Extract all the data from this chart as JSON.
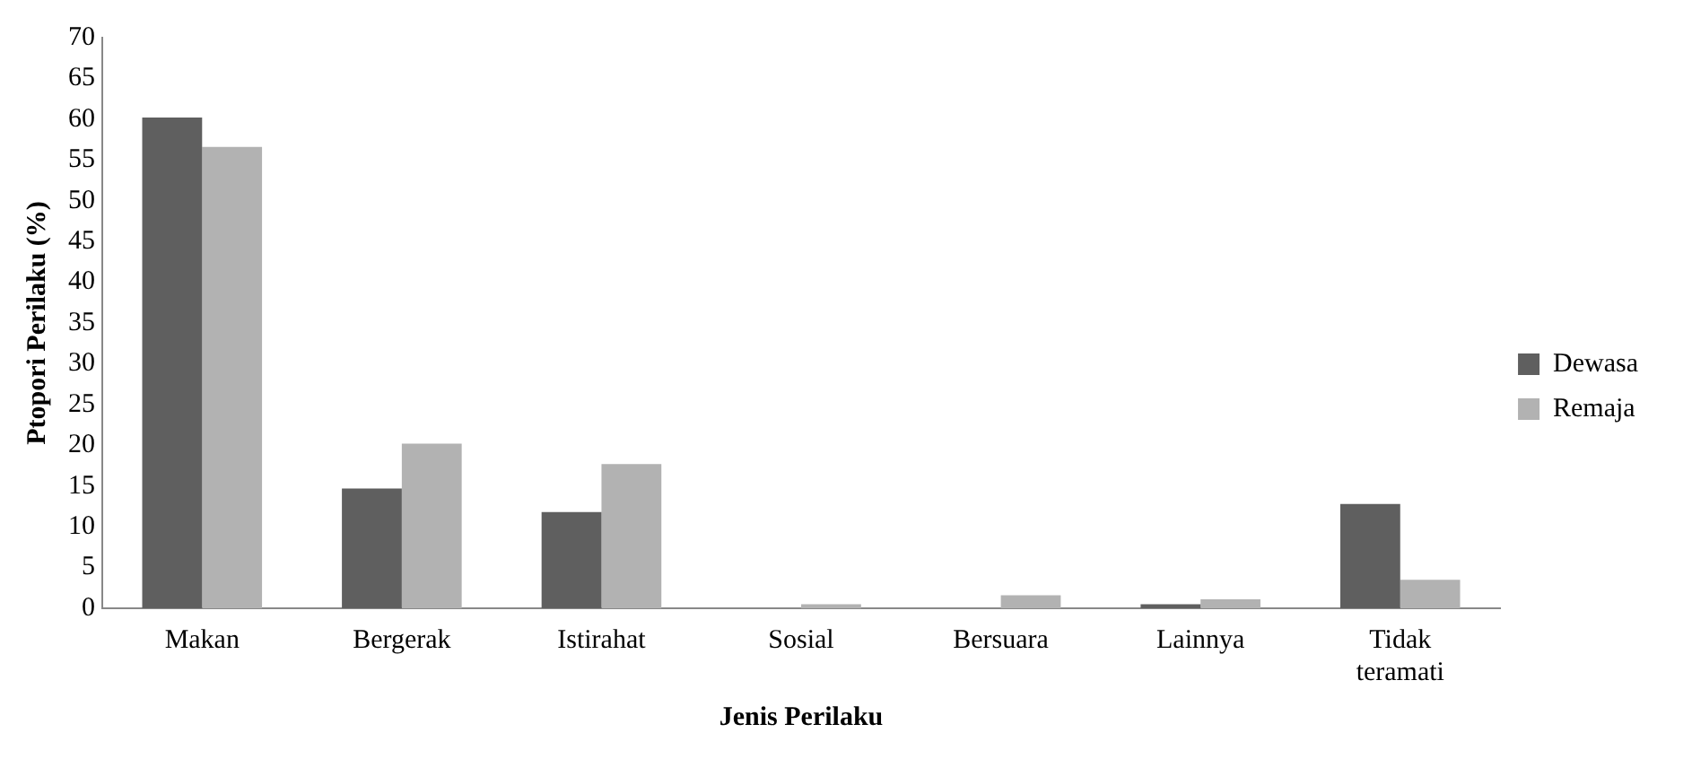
{
  "chart_data": {
    "type": "bar",
    "xlabel": "Jenis Perilaku",
    "ylabel": "Ptopori Perilaku (%)",
    "categories": [
      "Makan",
      "Bergerak",
      "Istirahat",
      "Sosial",
      "Bersuara",
      "Lainnya",
      "Tidak teramati"
    ],
    "series": [
      {
        "name": "Dewasa",
        "color": "#5f5f5f",
        "values": [
          60.2,
          14.7,
          11.8,
          0,
          0,
          0.5,
          12.8
        ]
      },
      {
        "name": "Remaja",
        "color": "#b2b2b2",
        "values": [
          56.6,
          20.2,
          17.7,
          0.5,
          1.6,
          1.1,
          3.5
        ]
      }
    ],
    "ylim": [
      0,
      70
    ],
    "yticks": [
      0,
      5,
      10,
      15,
      20,
      25,
      30,
      35,
      40,
      45,
      50,
      55,
      60,
      65,
      70
    ],
    "grid": false,
    "legend": "right"
  }
}
